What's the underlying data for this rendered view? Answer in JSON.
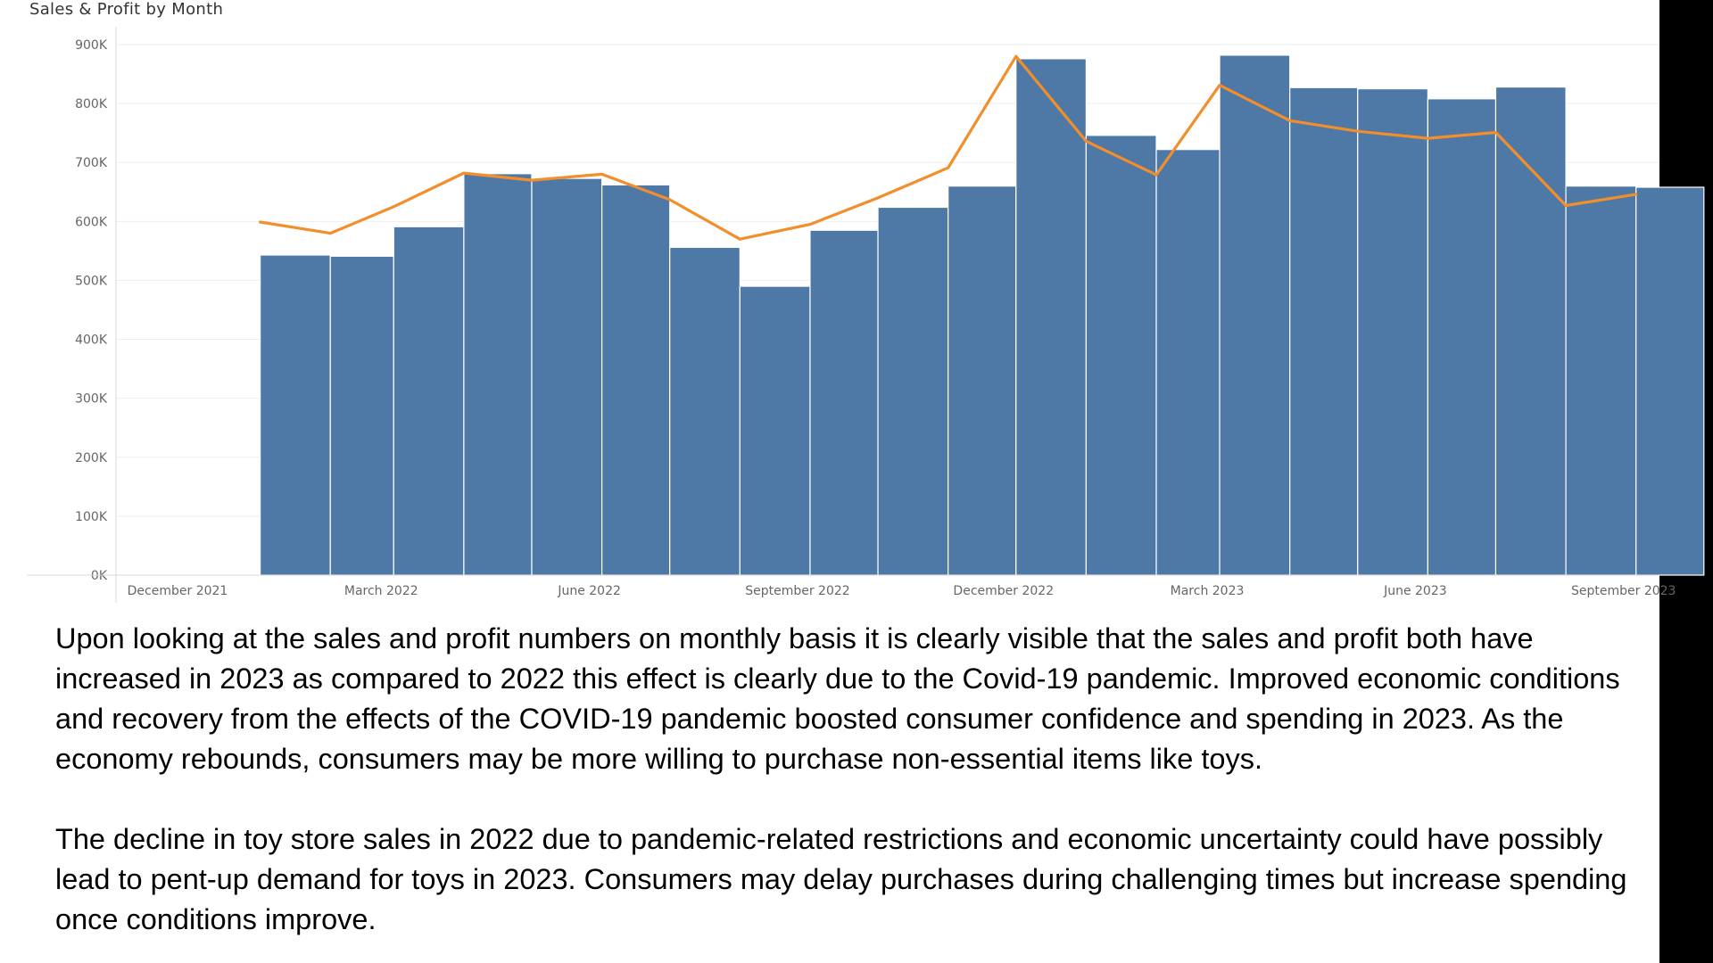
{
  "colors": {
    "bar": "#4e79a7",
    "line": "#f28e2b"
  },
  "chart_data": {
    "type": "bar",
    "title": "Sales & Profit by Month",
    "ylim": [
      0,
      900000
    ],
    "y_ticks": [
      {
        "value": 900000,
        "label": "900K"
      },
      {
        "value": 800000,
        "label": "800K"
      },
      {
        "value": 700000,
        "label": "700K"
      },
      {
        "value": 600000,
        "label": "600K"
      },
      {
        "value": 500000,
        "label": "500K"
      },
      {
        "value": 400000,
        "label": "400K"
      },
      {
        "value": 300000,
        "label": "300K"
      },
      {
        "value": 200000,
        "label": "200K"
      },
      {
        "value": 100000,
        "label": "100K"
      },
      {
        "value": 0,
        "label": "0K"
      }
    ],
    "x_ticks": [
      {
        "date": "2021-12-01",
        "label": "December 2021"
      },
      {
        "date": "2022-03-01",
        "label": "March 2022"
      },
      {
        "date": "2022-06-01",
        "label": "June 2022"
      },
      {
        "date": "2022-09-01",
        "label": "September 2022"
      },
      {
        "date": "2022-12-01",
        "label": "December 2022"
      },
      {
        "date": "2023-03-01",
        "label": "March 2023"
      },
      {
        "date": "2023-06-01",
        "label": "June 2023"
      },
      {
        "date": "2023-09-01",
        "label": "September 2023"
      }
    ],
    "grid": true,
    "series": [
      {
        "type": "bar",
        "points": [
          {
            "start": "2022-01-01",
            "end": "2022-02-01",
            "value": 543000
          },
          {
            "start": "2022-02-01",
            "end": "2022-03-01",
            "value": 541000
          },
          {
            "start": "2022-03-01",
            "end": "2022-04-01",
            "value": 591000
          },
          {
            "start": "2022-04-01",
            "end": "2022-05-01",
            "value": 681000
          },
          {
            "start": "2022-05-01",
            "end": "2022-06-01",
            "value": 673000
          },
          {
            "start": "2022-06-01",
            "end": "2022-07-01",
            "value": 662000
          },
          {
            "start": "2022-07-01",
            "end": "2022-08-01",
            "value": 556000
          },
          {
            "start": "2022-08-01",
            "end": "2022-09-01",
            "value": 490000
          },
          {
            "start": "2022-09-01",
            "end": "2022-10-01",
            "value": 585000
          },
          {
            "start": "2022-10-01",
            "end": "2022-11-01",
            "value": 624000
          },
          {
            "start": "2022-11-01",
            "end": "2022-12-01",
            "value": 660000
          },
          {
            "start": "2022-12-01",
            "end": "2023-01-01",
            "value": 876000
          },
          {
            "start": "2023-01-01",
            "end": "2023-02-01",
            "value": 746000
          },
          {
            "start": "2023-02-01",
            "end": "2023-03-01",
            "value": 722000
          },
          {
            "start": "2023-03-01",
            "end": "2023-04-01",
            "value": 882000
          },
          {
            "start": "2023-04-01",
            "end": "2023-05-01",
            "value": 827000
          },
          {
            "start": "2023-05-01",
            "end": "2023-06-01",
            "value": 825000
          },
          {
            "start": "2023-06-01",
            "end": "2023-07-01",
            "value": 808000
          },
          {
            "start": "2023-07-01",
            "end": "2023-08-01",
            "value": 828000
          },
          {
            "start": "2023-08-01",
            "end": "2023-09-01",
            "value": 660000
          },
          {
            "start": "2023-09-01",
            "end": "2023-10-01",
            "value": 658000
          }
        ]
      },
      {
        "type": "line",
        "points": [
          {
            "date": "2022-01-01",
            "value": 599000
          },
          {
            "date": "2022-02-01",
            "value": 580000
          },
          {
            "date": "2022-03-01",
            "value": 625000
          },
          {
            "date": "2022-04-01",
            "value": 682000
          },
          {
            "date": "2022-05-01",
            "value": 670000
          },
          {
            "date": "2022-06-01",
            "value": 680000
          },
          {
            "date": "2022-07-01",
            "value": 637000
          },
          {
            "date": "2022-08-01",
            "value": 570000
          },
          {
            "date": "2022-09-01",
            "value": 595000
          },
          {
            "date": "2022-10-01",
            "value": 640000
          },
          {
            "date": "2022-11-01",
            "value": 691000
          },
          {
            "date": "2022-12-01",
            "value": 880000
          },
          {
            "date": "2023-01-01",
            "value": 736000
          },
          {
            "date": "2023-02-01",
            "value": 679000
          },
          {
            "date": "2023-03-01",
            "value": 831000
          },
          {
            "date": "2023-04-01",
            "value": 771000
          },
          {
            "date": "2023-05-01",
            "value": 753000
          },
          {
            "date": "2023-06-01",
            "value": 741000
          },
          {
            "date": "2023-07-01",
            "value": 751000
          },
          {
            "date": "2023-08-01",
            "value": 627000
          },
          {
            "date": "2023-09-01",
            "value": 646000
          }
        ]
      }
    ]
  },
  "commentary": {
    "paragraph_1": "Upon looking at the sales and profit numbers on monthly basis it is clearly visible that the sales and profit both have increased in 2023 as compared to 2022 this effect is clearly due to the Covid-19 pandemic. Improved economic conditions and recovery from the effects of the COVID-19 pandemic boosted consumer confidence and spending in 2023. As the economy rebounds, consumers may be more willing to purchase non-essential items like toys.",
    "paragraph_2": "The decline in toy store sales in 2022 due to pandemic-related restrictions and economic uncertainty could have possibly lead to pent-up demand for toys in 2023. Consumers may delay purchases during challenging times but increase spending once conditions improve."
  }
}
